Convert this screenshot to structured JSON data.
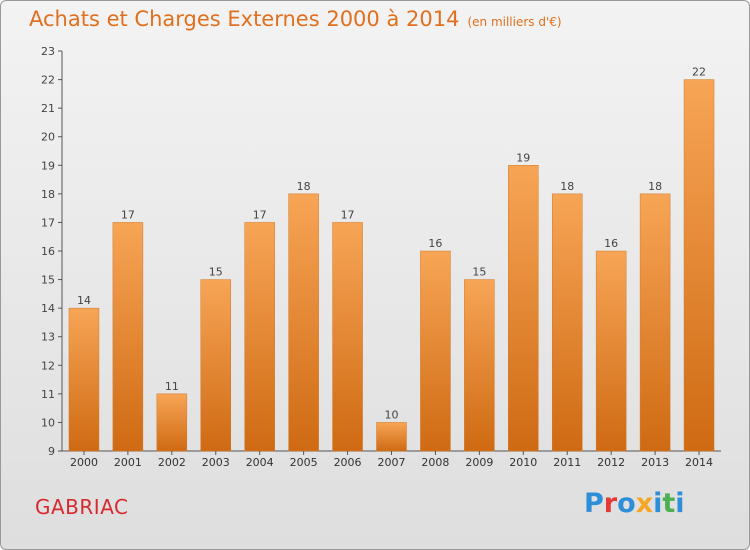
{
  "header": {
    "title": "Achats et Charges Externes 2000 à 2014",
    "unit": "(en milliers d'€)"
  },
  "footer": {
    "commune": "GABRIAC",
    "logo": {
      "text": "Proxiti",
      "letter_colors": [
        "#2e8fd8",
        "#e53935",
        "#2e8fd8",
        "#f5a623",
        "#2e8fd8",
        "#4caf50",
        "#2e8fd8"
      ]
    }
  },
  "colors": {
    "accent": "#e0701e",
    "bar_top": "#f7a556",
    "bar_bottom": "#cf6a13",
    "commune": "#d7292f"
  },
  "chart_data": {
    "type": "bar",
    "categories": [
      "2000",
      "2001",
      "2002",
      "2003",
      "2004",
      "2005",
      "2006",
      "2007",
      "2008",
      "2009",
      "2010",
      "2011",
      "2012",
      "2013",
      "2014"
    ],
    "values": [
      14,
      17,
      11,
      15,
      17,
      18,
      17,
      10,
      16,
      15,
      19,
      18,
      16,
      18,
      22
    ],
    "ylim": [
      9,
      23
    ],
    "yticks": [
      9,
      10,
      11,
      12,
      13,
      14,
      15,
      16,
      17,
      18,
      19,
      20,
      21,
      22,
      23
    ],
    "data_labels": true,
    "grid": false
  }
}
